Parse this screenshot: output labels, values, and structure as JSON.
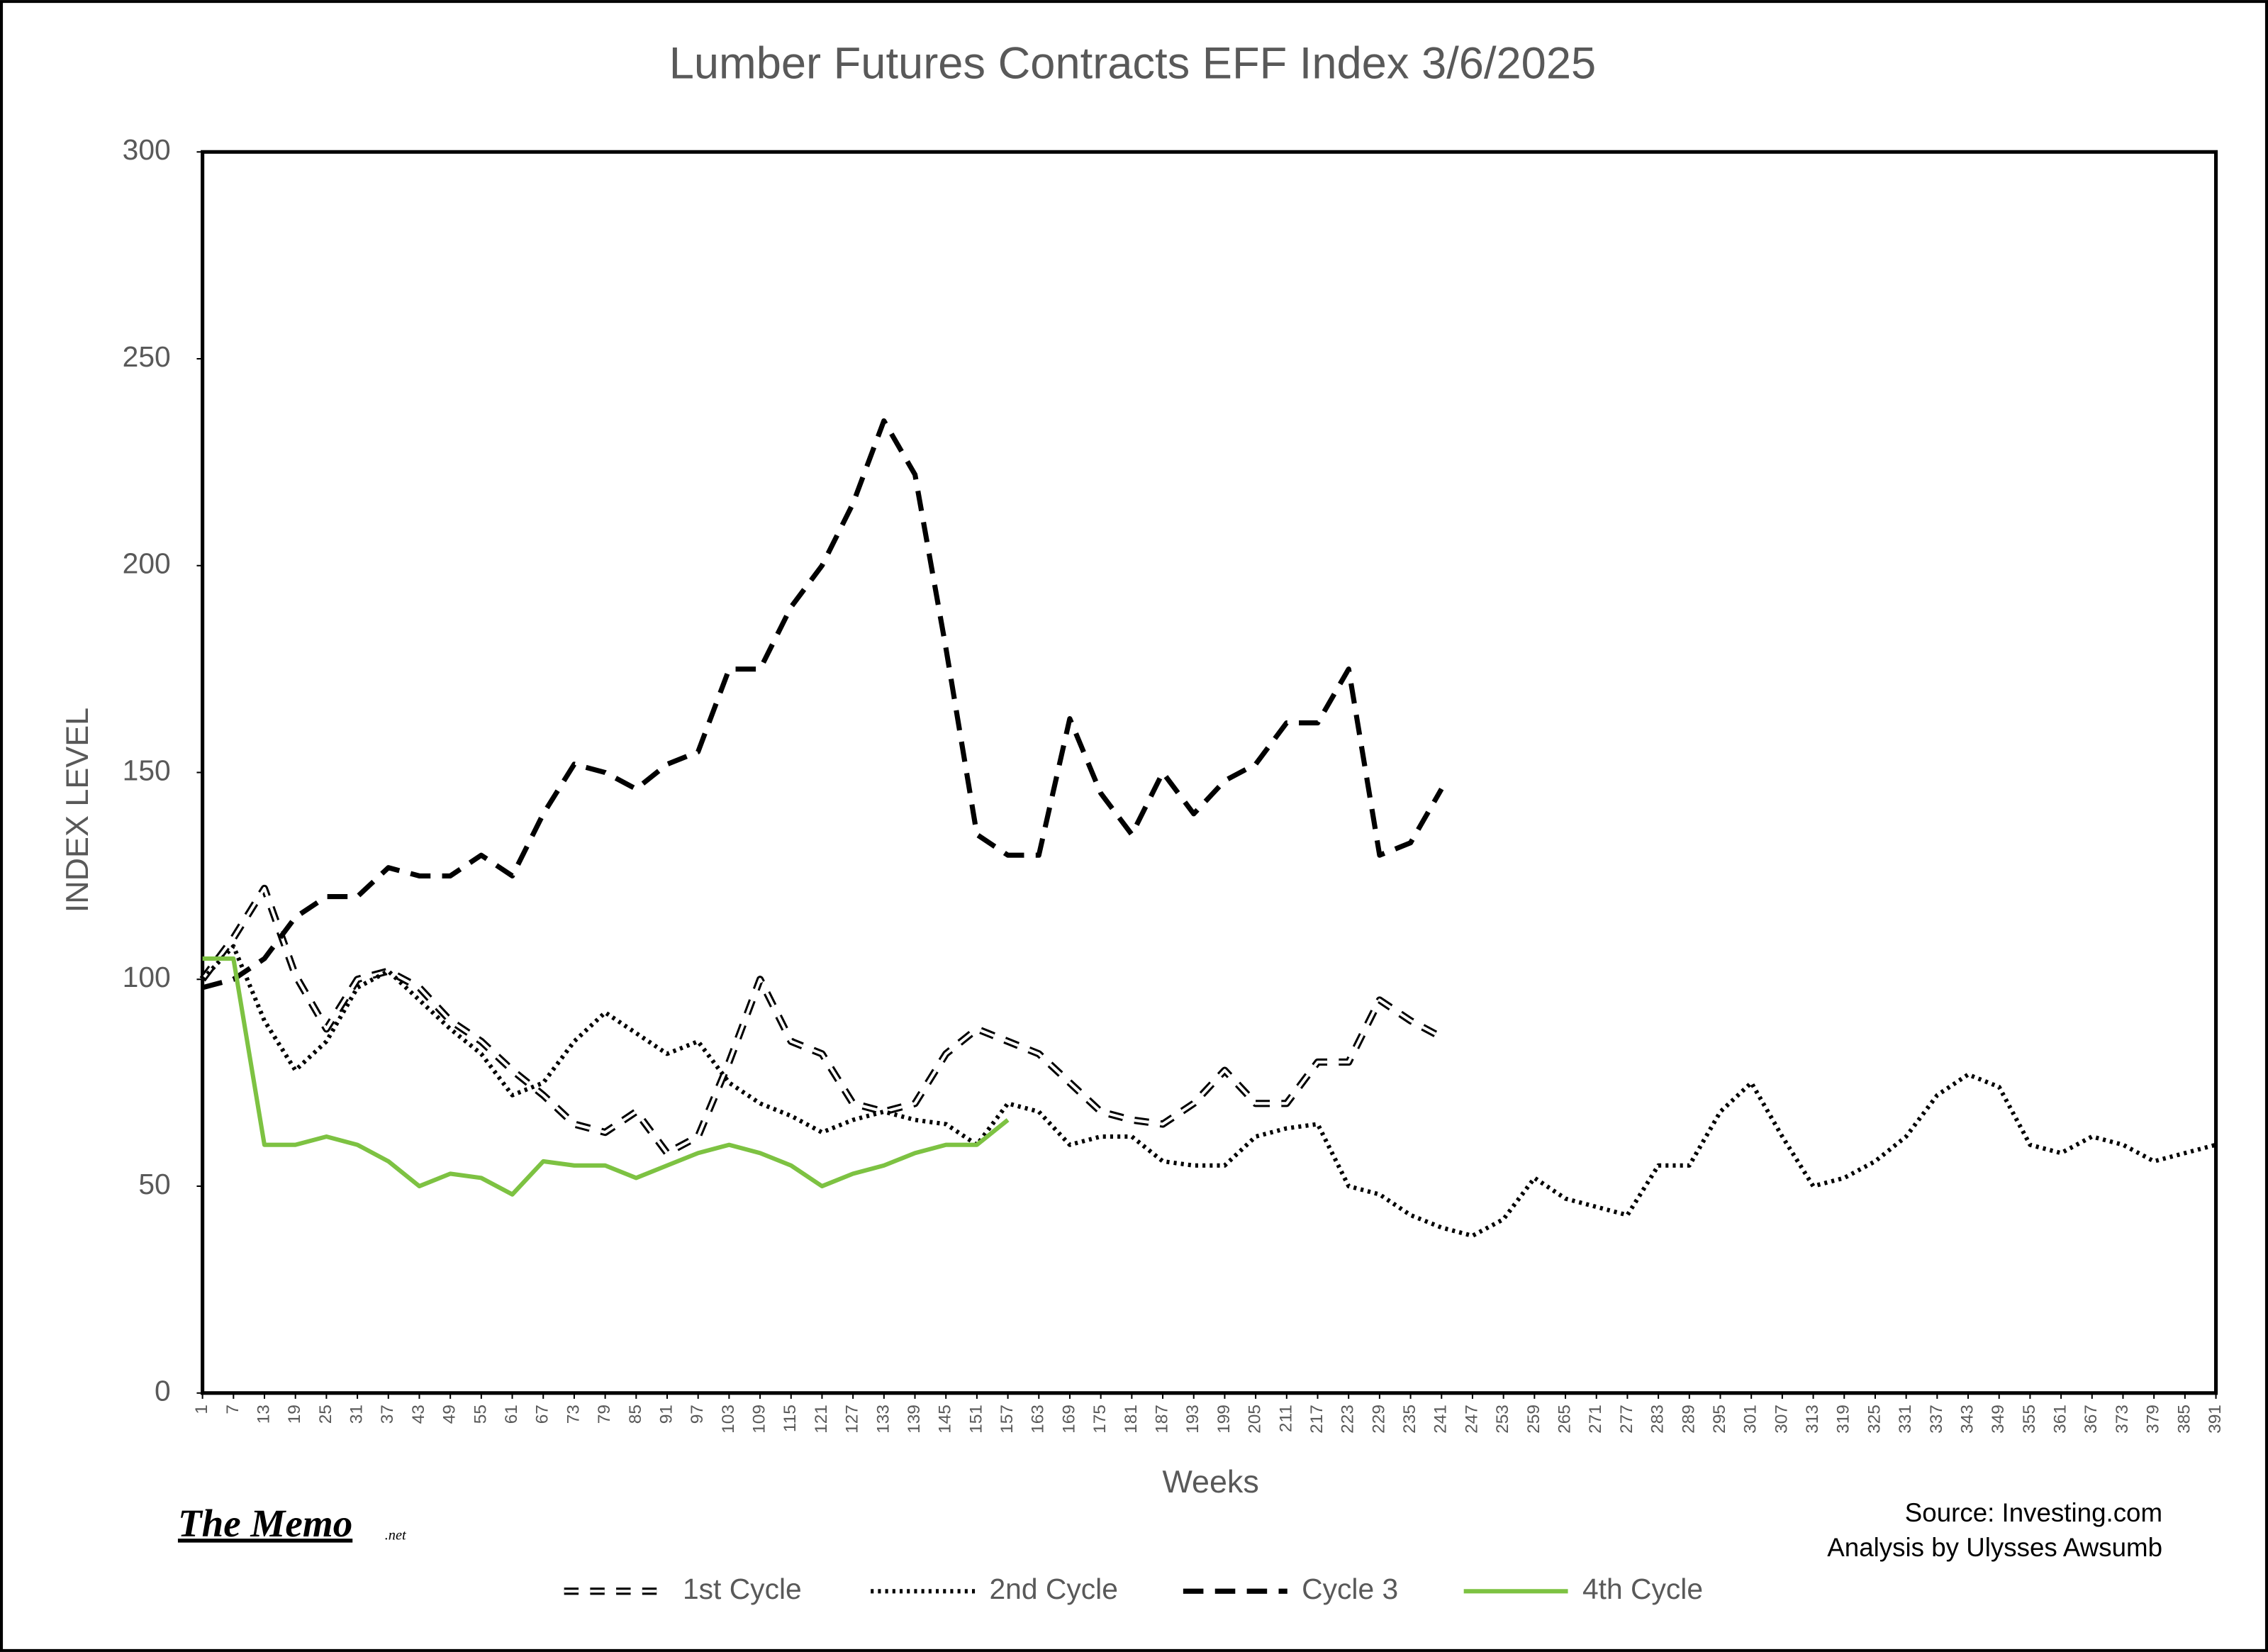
{
  "chart_data": {
    "type": "line",
    "title": "Lumber Futures Contracts  EFF Index 3/6/2025",
    "y_label": "INDEX LEVEL",
    "x_label": "Weeks",
    "source": "Source: Investing.com",
    "analysis": "Analysis by Ulysses Awsumb",
    "brand": "The Memo",
    "brand_suffix": ".net",
    "x": [
      1,
      7,
      13,
      19,
      25,
      31,
      37,
      43,
      49,
      55,
      61,
      67,
      73,
      79,
      85,
      91,
      97,
      103,
      109,
      115,
      121,
      127,
      133,
      139,
      145,
      151,
      157,
      163,
      169,
      175,
      181,
      187,
      193,
      199,
      205,
      211,
      217,
      223,
      229,
      235,
      241,
      247,
      253,
      259,
      265,
      271,
      277,
      283,
      289,
      295,
      301,
      307,
      313,
      319,
      325,
      331,
      337,
      343,
      349,
      355,
      361,
      367,
      373,
      379,
      385,
      391
    ],
    "xlim": [
      1,
      391
    ],
    "xticks": [
      1,
      7,
      13,
      19,
      25,
      31,
      37,
      43,
      49,
      55,
      61,
      67,
      73,
      79,
      85,
      91,
      97,
      103,
      109,
      115,
      121,
      127,
      133,
      139,
      145,
      151,
      157,
      163,
      169,
      175,
      181,
      187,
      193,
      199,
      205,
      211,
      217,
      223,
      229,
      235,
      241,
      247,
      253,
      259,
      265,
      271,
      277,
      283,
      289,
      295,
      301,
      307,
      313,
      319,
      325,
      331,
      337,
      343,
      349,
      355,
      361,
      367,
      373,
      379,
      385,
      391
    ],
    "ylim": [
      0,
      300
    ],
    "yticks": [
      0,
      50,
      100,
      150,
      200,
      250,
      300
    ],
    "grid": false,
    "legend": "bottom",
    "series": [
      {
        "name": "1st Cycle",
        "color": "#000000",
        "style": "hollow-dash",
        "values": [
          100,
          110,
          122,
          101,
          88,
          100,
          102,
          98,
          90,
          85,
          78,
          72,
          65,
          63,
          68,
          58,
          62,
          80,
          100,
          85,
          82,
          70,
          68,
          70,
          82,
          88,
          85,
          82,
          75,
          68,
          66,
          65,
          70,
          78,
          70,
          70,
          80,
          80,
          95,
          90,
          86,
          null,
          null,
          null,
          null,
          null,
          null,
          null,
          null,
          null,
          null,
          null,
          null,
          null,
          null,
          null,
          null,
          null,
          null,
          null,
          null,
          null,
          null,
          null,
          null,
          null
        ]
      },
      {
        "name": "2nd Cycle",
        "color": "#000000",
        "style": "dotted",
        "values": [
          100,
          108,
          90,
          78,
          85,
          98,
          102,
          95,
          88,
          82,
          72,
          75,
          85,
          92,
          87,
          82,
          85,
          75,
          70,
          67,
          63,
          66,
          68,
          66,
          65,
          60,
          70,
          68,
          60,
          62,
          62,
          56,
          55,
          55,
          62,
          64,
          65,
          50,
          48,
          43,
          40,
          38,
          42,
          52,
          47,
          45,
          43,
          55,
          55,
          68,
          75,
          62,
          50,
          52,
          56,
          62,
          72,
          77,
          74,
          60,
          58,
          62,
          60,
          56,
          58,
          60
        ]
      },
      {
        "name": "Cycle 3",
        "color": "#000000",
        "style": "dashed",
        "values": [
          98,
          100,
          105,
          115,
          120,
          120,
          127,
          125,
          125,
          130,
          125,
          140,
          152,
          150,
          146,
          152,
          155,
          175,
          175,
          190,
          200,
          215,
          235,
          222,
          180,
          135,
          130,
          130,
          163,
          145,
          135,
          150,
          140,
          148,
          152,
          162,
          162,
          175,
          130,
          133,
          146,
          null,
          null,
          null,
          null,
          null,
          null,
          null,
          null,
          null,
          null,
          null,
          null,
          null,
          null,
          null,
          null,
          null,
          null,
          null,
          null,
          null,
          null,
          null,
          null,
          null
        ]
      },
      {
        "name": "4th Cycle",
        "color": "#7dc242",
        "style": "solid",
        "values": [
          105,
          105,
          60,
          60,
          62,
          60,
          56,
          50,
          53,
          52,
          48,
          56,
          55,
          55,
          52,
          55,
          58,
          60,
          58,
          55,
          50,
          53,
          55,
          58,
          60,
          60,
          66,
          null,
          null,
          null,
          null,
          null,
          null,
          null,
          null,
          null,
          null,
          null,
          null,
          null,
          null,
          null,
          null,
          null,
          null,
          null,
          null,
          null,
          null,
          null,
          null,
          null,
          null,
          null,
          null,
          null,
          null,
          null,
          null,
          null,
          null,
          null,
          null,
          null,
          null,
          null
        ]
      }
    ]
  }
}
